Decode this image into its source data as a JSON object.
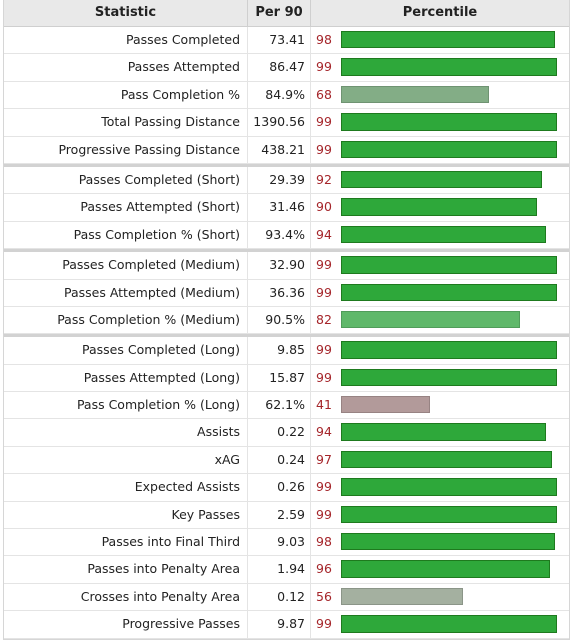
{
  "header": {
    "statistic": "Statistic",
    "per90": "Per 90",
    "percentile": "Percentile"
  },
  "colors": {
    "high": "#2ea83a",
    "mid_high": "#5fb86a",
    "mid": "#83ad86",
    "mid_low": "#a4b0a0",
    "low": "#b29a9a"
  },
  "rows": [
    {
      "stat": "Passes Completed",
      "per90": "73.41",
      "pct": "98",
      "group_start": false
    },
    {
      "stat": "Passes Attempted",
      "per90": "86.47",
      "pct": "99",
      "group_start": false
    },
    {
      "stat": "Pass Completion %",
      "per90": "84.9%",
      "pct": "68",
      "group_start": false
    },
    {
      "stat": "Total Passing Distance",
      "per90": "1390.56",
      "pct": "99",
      "group_start": false
    },
    {
      "stat": "Progressive Passing Distance",
      "per90": "438.21",
      "pct": "99",
      "group_start": false
    },
    {
      "stat": "Passes Completed (Short)",
      "per90": "29.39",
      "pct": "92",
      "group_start": true
    },
    {
      "stat": "Passes Attempted (Short)",
      "per90": "31.46",
      "pct": "90",
      "group_start": false
    },
    {
      "stat": "Pass Completion % (Short)",
      "per90": "93.4%",
      "pct": "94",
      "group_start": false
    },
    {
      "stat": "Passes Completed (Medium)",
      "per90": "32.90",
      "pct": "99",
      "group_start": true
    },
    {
      "stat": "Passes Attempted (Medium)",
      "per90": "36.36",
      "pct": "99",
      "group_start": false
    },
    {
      "stat": "Pass Completion % (Medium)",
      "per90": "90.5%",
      "pct": "82",
      "group_start": false
    },
    {
      "stat": "Passes Completed (Long)",
      "per90": "9.85",
      "pct": "99",
      "group_start": true
    },
    {
      "stat": "Passes Attempted (Long)",
      "per90": "15.87",
      "pct": "99",
      "group_start": false
    },
    {
      "stat": "Pass Completion % (Long)",
      "per90": "62.1%",
      "pct": "41",
      "group_start": false
    },
    {
      "stat": "Assists",
      "per90": "0.22",
      "pct": "94",
      "group_start": false
    },
    {
      "stat": "xAG",
      "per90": "0.24",
      "pct": "97",
      "group_start": false
    },
    {
      "stat": "Expected Assists",
      "per90": "0.26",
      "pct": "99",
      "group_start": false
    },
    {
      "stat": "Key Passes",
      "per90": "2.59",
      "pct": "99",
      "group_start": false
    },
    {
      "stat": "Passes into Final Third",
      "per90": "9.03",
      "pct": "98",
      "group_start": false
    },
    {
      "stat": "Passes into Penalty Area",
      "per90": "1.94",
      "pct": "96",
      "group_start": false
    },
    {
      "stat": "Crosses into Penalty Area",
      "per90": "0.12",
      "pct": "56",
      "group_start": false
    },
    {
      "stat": "Progressive Passes",
      "per90": "9.87",
      "pct": "99",
      "group_start": false
    }
  ]
}
